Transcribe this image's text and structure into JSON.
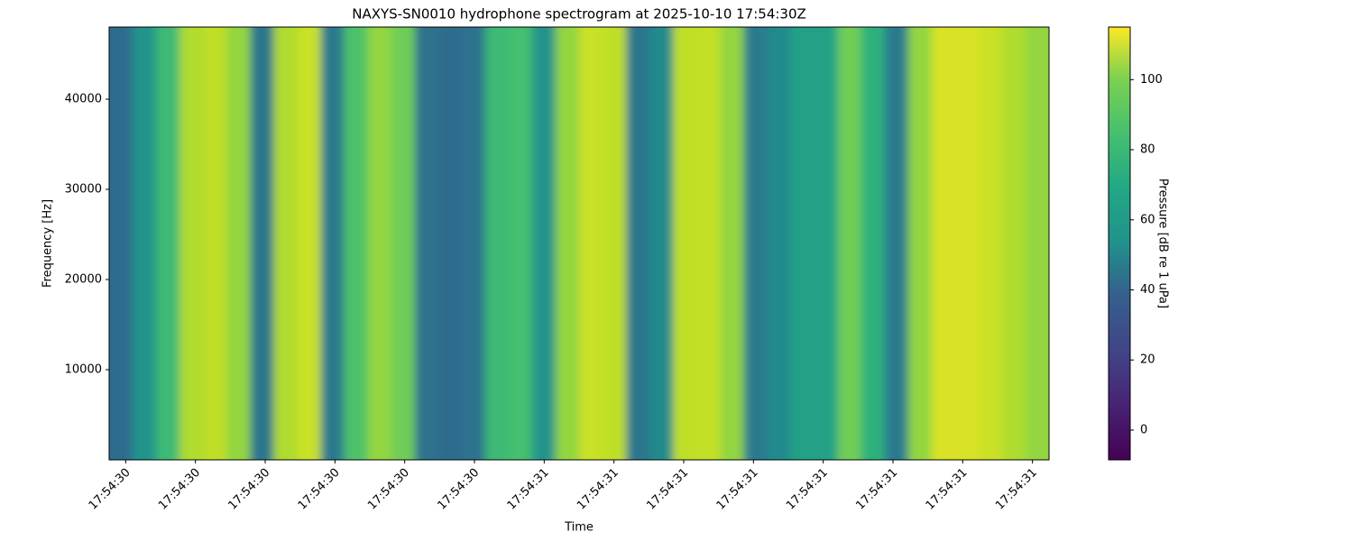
{
  "chart_data": {
    "type": "heatmap",
    "title": "NAXYS-SN0010 hydrophone spectrogram at 2025-10-10 17:54:30Z",
    "xlabel": "Time",
    "ylabel": "Frequency [Hz]",
    "colorbar_label": "Pressure [dB re 1 uPa]",
    "colormap": "viridis",
    "x": [
      0.0345,
      0.0615,
      0.0884,
      0.1153,
      0.1423,
      0.1692,
      0.1962,
      0.2231,
      0.2501,
      0.277,
      0.304,
      0.3309,
      0.3579,
      0.3849,
      0.4118,
      0.4388,
      0.4657,
      0.4927,
      0.5196,
      0.5466,
      0.5735,
      0.6005,
      0.6274,
      0.6544,
      0.6813,
      0.7083,
      0.7352,
      0.7622,
      0.7891,
      0.8161,
      0.843,
      0.87,
      0.897,
      0.9239,
      0.9509,
      0.9778,
      1.0048,
      1.0317,
      1.0587,
      1.0856
    ],
    "values": [
      35,
      55,
      75,
      100,
      103,
      95,
      40,
      100,
      105,
      42,
      80,
      95,
      88,
      38,
      35,
      38,
      75,
      78,
      55,
      95,
      105,
      103,
      40,
      50,
      103,
      104,
      95,
      42,
      50,
      62,
      62,
      88,
      70,
      42,
      95,
      108,
      108,
      105,
      100,
      95
    ],
    "xlim": [
      0.021,
      1.099
    ],
    "xticks": [
      {
        "value": 0.04,
        "label": "17:54:30"
      },
      {
        "value": 0.12,
        "label": "17:54:30"
      },
      {
        "value": 0.2,
        "label": "17:54:30"
      },
      {
        "value": 0.28,
        "label": "17:54:30"
      },
      {
        "value": 0.36,
        "label": "17:54:30"
      },
      {
        "value": 0.44,
        "label": "17:54:30"
      },
      {
        "value": 0.52,
        "label": "17:54:31"
      },
      {
        "value": 0.6,
        "label": "17:54:31"
      },
      {
        "value": 0.68,
        "label": "17:54:31"
      },
      {
        "value": 0.76,
        "label": "17:54:31"
      },
      {
        "value": 0.84,
        "label": "17:54:31"
      },
      {
        "value": 0.92,
        "label": "17:54:31"
      },
      {
        "value": 1.0,
        "label": "17:54:31"
      },
      {
        "value": 1.08,
        "label": "17:54:31"
      }
    ],
    "ylim": [
      0,
      48000
    ],
    "yticks": [
      10000,
      20000,
      30000,
      40000
    ],
    "clim": [
      -8.5,
      115
    ],
    "cticks": [
      0,
      20,
      40,
      60,
      80,
      100
    ]
  }
}
